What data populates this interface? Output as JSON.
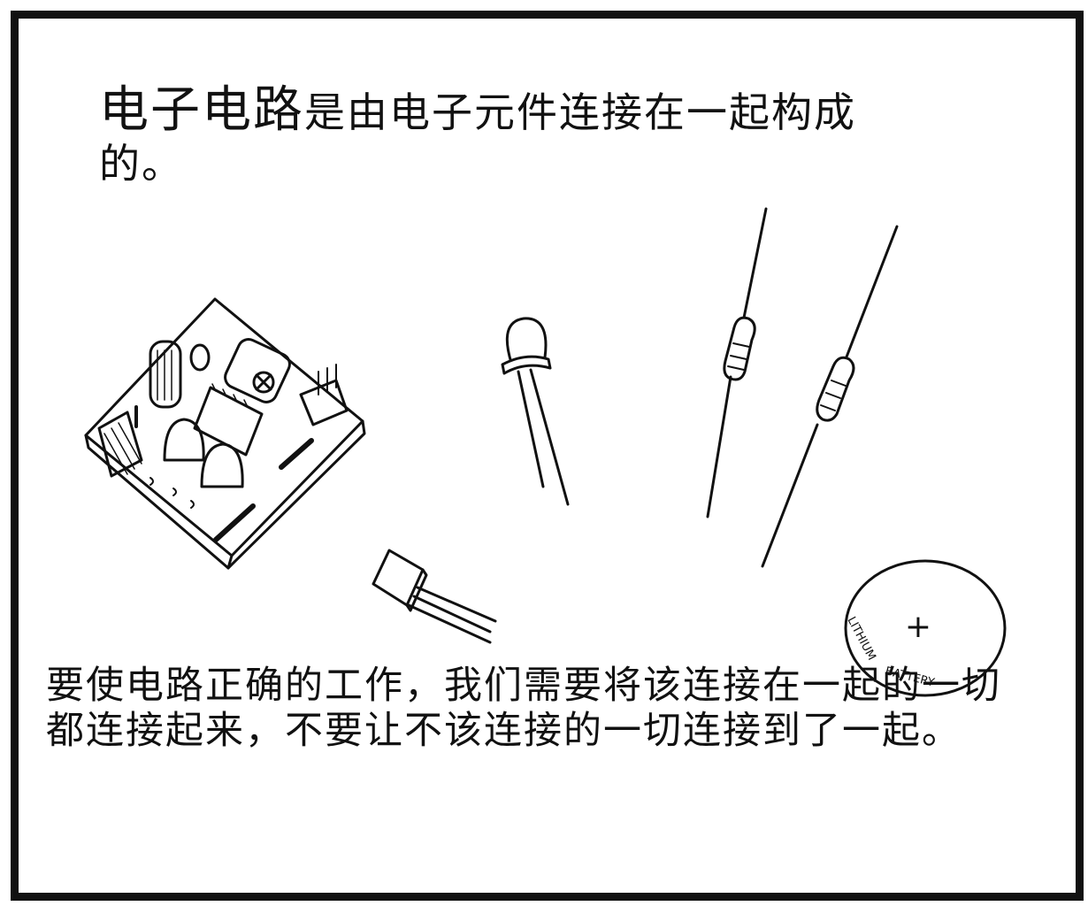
{
  "top_caption": {
    "lead": "电子电路",
    "rest": "是由电子元件连接在一起构成的。"
  },
  "battery": {
    "label_line1": "LITHIUM",
    "label_line2": "BATTERY",
    "symbol": "+"
  },
  "bottom_caption": "要使电路正确的工作，我们需要将该连接在一起的一切都连接起来，不要让不该连接的一切连接到了一起。"
}
